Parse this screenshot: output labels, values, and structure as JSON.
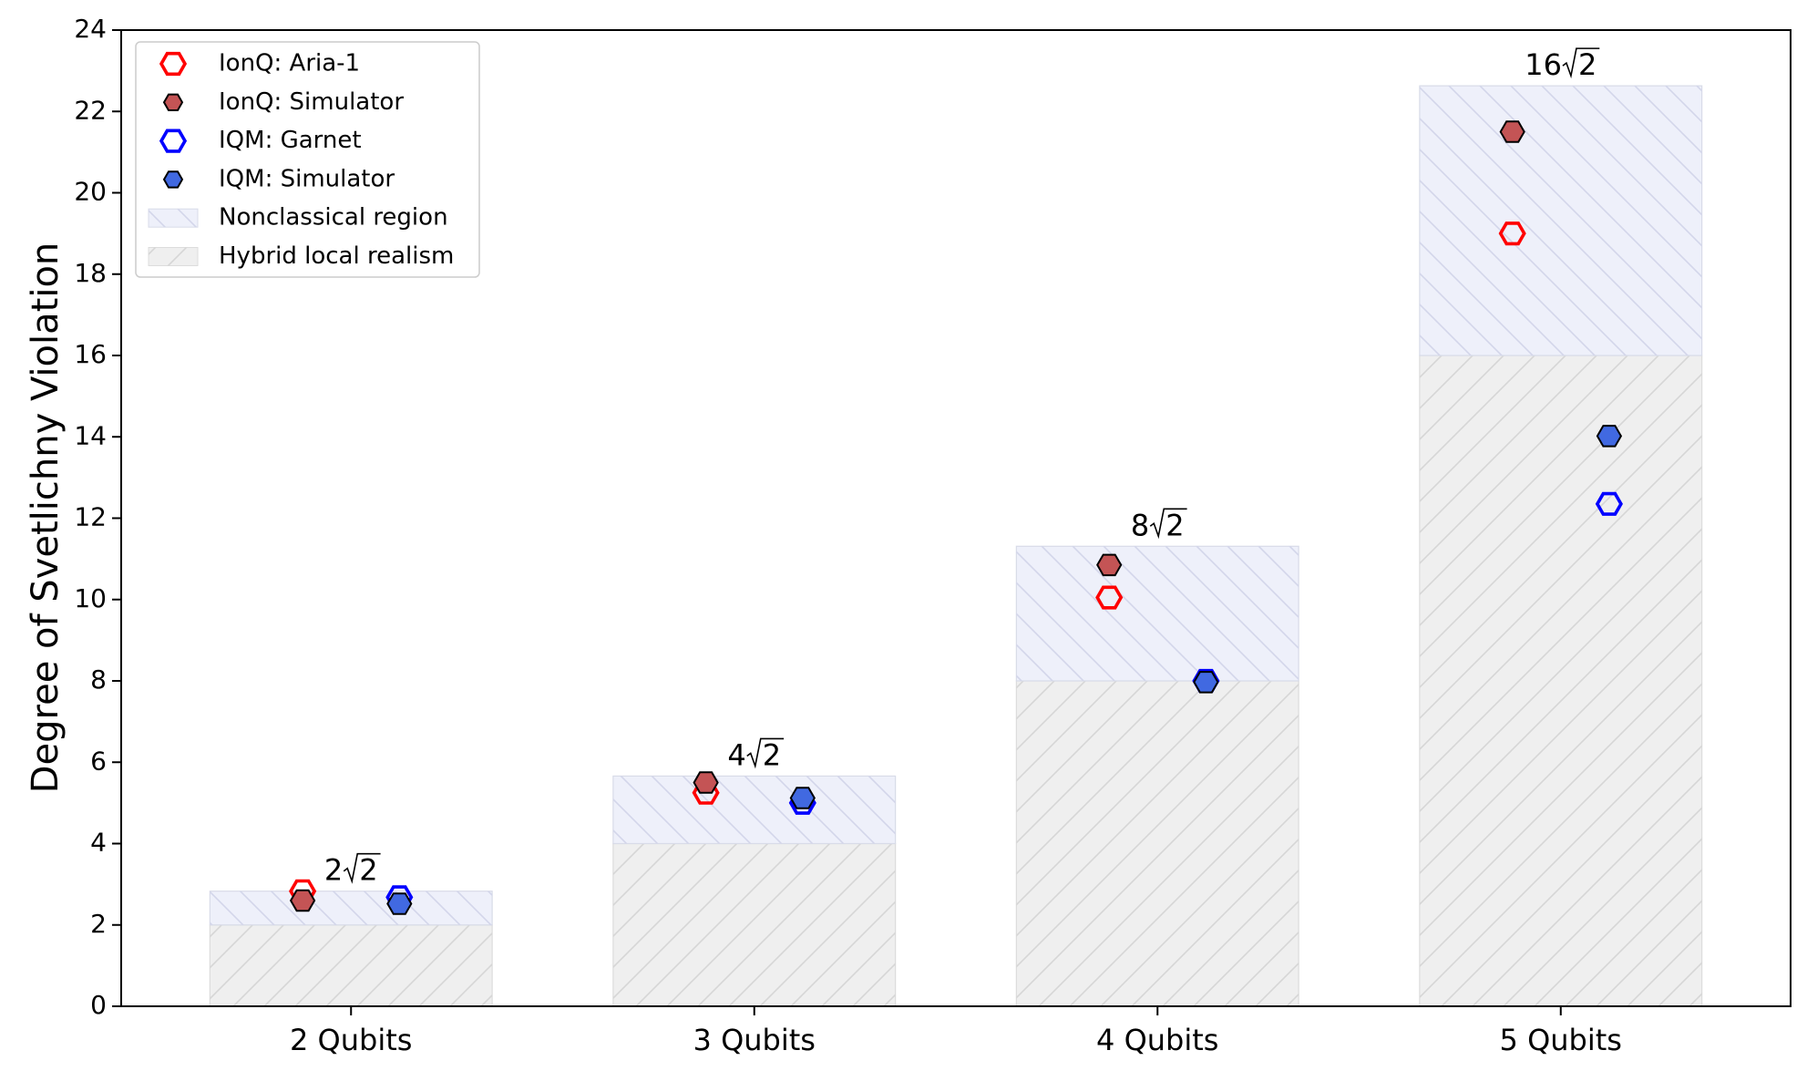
{
  "chart_data": {
    "type": "bar",
    "categories": [
      "2 Qubits",
      "3 Qubits",
      "4 Qubits",
      "5 Qubits"
    ],
    "ylabel": "Degree of Svetlichny Violation",
    "xlabel": "",
    "title": "",
    "ylim": [
      0,
      24
    ],
    "yticks": [
      0,
      2,
      4,
      6,
      8,
      10,
      12,
      14,
      16,
      18,
      20,
      22,
      24
    ],
    "grid": false,
    "legend_position": "top-left",
    "bars": [
      {
        "name": "Hybrid local realism",
        "values": [
          2,
          4,
          8,
          16
        ],
        "color": "#efefef",
        "hatch": "forward"
      },
      {
        "name": "Nonclassical region",
        "values": [
          2.83,
          5.66,
          11.31,
          22.63
        ],
        "color": "#eef0fa",
        "hatch": "backward"
      }
    ],
    "bound_labels": [
      {
        "coef": "2",
        "radicand": "2"
      },
      {
        "coef": "4",
        "radicand": "2"
      },
      {
        "coef": "8",
        "radicand": "2"
      },
      {
        "coef": "16",
        "radicand": "2"
      }
    ],
    "series": [
      {
        "name": "IonQ: Aria-1",
        "values": [
          2.83,
          5.25,
          10.05,
          19.0
        ],
        "offset": -0.12,
        "filled": false,
        "edge_color": "#ff0000",
        "fill_color": "none"
      },
      {
        "name": "IonQ: Simulator",
        "values": [
          2.6,
          5.5,
          10.85,
          21.5
        ],
        "offset": -0.12,
        "filled": true,
        "edge_color": "#000000",
        "fill_color": "#c45455"
      },
      {
        "name": "IQM: Garnet",
        "values": [
          2.68,
          5.0,
          8.0,
          12.35
        ],
        "offset": 0.12,
        "filled": false,
        "edge_color": "#0000ff",
        "fill_color": "none"
      },
      {
        "name": "IQM: Simulator",
        "values": [
          2.52,
          5.12,
          7.97,
          14.02
        ],
        "offset": 0.12,
        "filled": true,
        "edge_color": "#000000",
        "fill_color": "#4169e1"
      }
    ],
    "legend_order": [
      "IonQ: Aria-1",
      "IonQ: Simulator",
      "IQM: Garnet",
      "IQM: Simulator",
      "Nonclassical region",
      "Hybrid local realism"
    ]
  }
}
